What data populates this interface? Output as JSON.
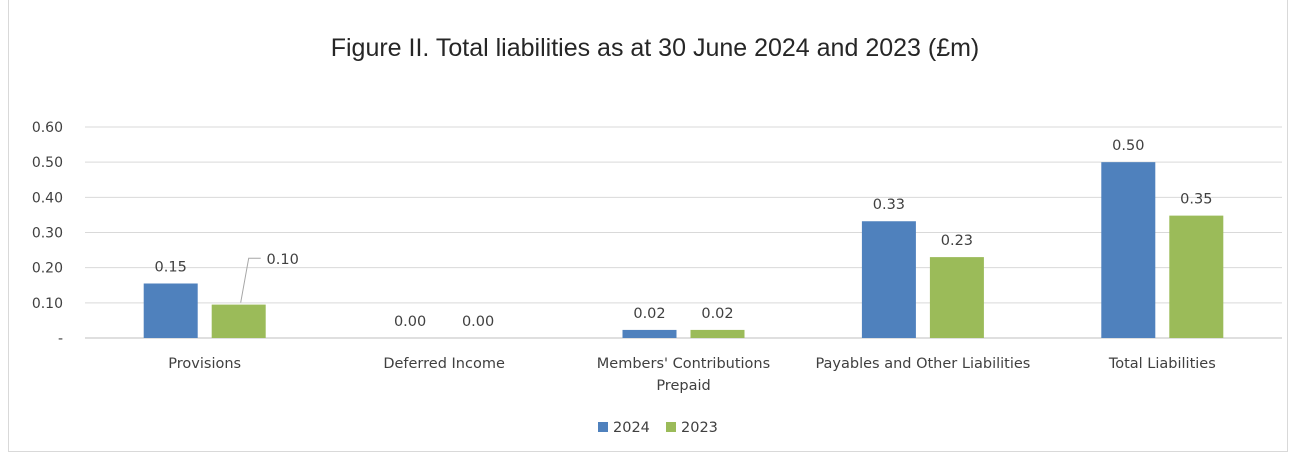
{
  "chart_data": {
    "type": "bar",
    "title": "Figure II. Total liabilities as at 30 June 2024 and 2023 (£m)",
    "xlabel": "",
    "ylabel": "",
    "categories": [
      [
        "Provisions"
      ],
      [
        "Deferred Income"
      ],
      [
        "Members' Contributions",
        "Prepaid"
      ],
      [
        "Payables and Other Liabilities"
      ],
      [
        "Total Liabilities"
      ]
    ],
    "series": [
      {
        "name": "2024",
        "color": "#4f81bd",
        "values": [
          0.155,
          0.0,
          0.023,
          0.332,
          0.5
        ],
        "labels": [
          "0.15",
          "0.00",
          "0.02",
          "0.33",
          "0.50"
        ]
      },
      {
        "name": "2023",
        "color": "#9bbb59",
        "values": [
          0.095,
          0.0,
          0.023,
          0.23,
          0.348
        ],
        "labels": [
          "0.10",
          "0.00",
          "0.02",
          "0.23",
          "0.35"
        ]
      }
    ],
    "yticks": [
      {
        "value": 0.0,
        "label": "-"
      },
      {
        "value": 0.1,
        "label": "0.10"
      },
      {
        "value": 0.2,
        "label": "0.20"
      },
      {
        "value": 0.3,
        "label": "0.30"
      },
      {
        "value": 0.4,
        "label": "0.40"
      },
      {
        "value": 0.5,
        "label": "0.50"
      },
      {
        "value": 0.6,
        "label": "0.60"
      }
    ],
    "ylim": [
      0,
      0.6
    ],
    "grid": true,
    "legend_position": "bottom"
  }
}
